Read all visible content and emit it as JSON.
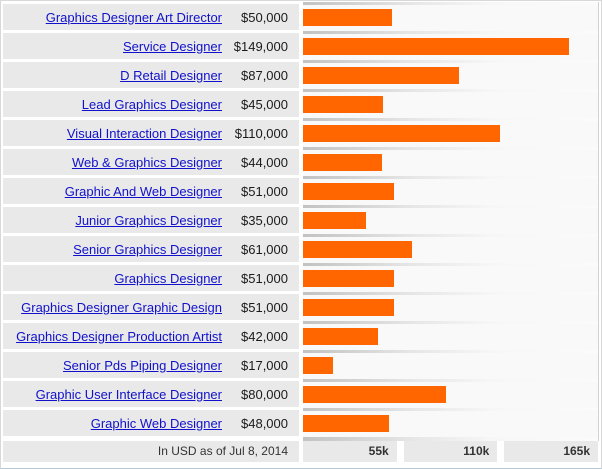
{
  "chart_data": {
    "type": "bar",
    "orientation": "horizontal",
    "categories": [
      "Graphics Designer Art Director",
      "Service Designer",
      "D Retail Designer",
      "Lead Graphics Designer",
      "Visual Interaction Designer",
      "Web & Graphics Designer",
      "Graphic And Web Designer",
      "Junior Graphics Designer",
      "Senior Graphics Designer",
      "Graphics Designer",
      "Graphics Designer Graphic Design",
      "Graphics Designer Production Artist",
      "Senior Pds Piping Designer",
      "Graphic User Interface Designer",
      "Graphic Web Designer"
    ],
    "values": [
      50000,
      149000,
      87000,
      45000,
      110000,
      44000,
      51000,
      35000,
      61000,
      51000,
      51000,
      42000,
      17000,
      80000,
      48000
    ],
    "value_labels": [
      "$50,000",
      "$149,000",
      "$87,000",
      "$45,000",
      "$110,000",
      "$44,000",
      "$51,000",
      "$35,000",
      "$61,000",
      "$51,000",
      "$51,000",
      "$42,000",
      "$17,000",
      "$80,000",
      "$48,000"
    ],
    "xlim": [
      0,
      165000
    ],
    "x_ticks": [
      "55k",
      "110k",
      "165k"
    ],
    "footer_note": "In USD as of Jul 8, 2014",
    "bar_color": "#ff6600",
    "grid": false,
    "legend": false
  },
  "colors": {
    "bar": "#ff6600",
    "link": "#1111cc",
    "row_background": "#e9e9e9",
    "chart_row_background": "#f9f9f9"
  }
}
